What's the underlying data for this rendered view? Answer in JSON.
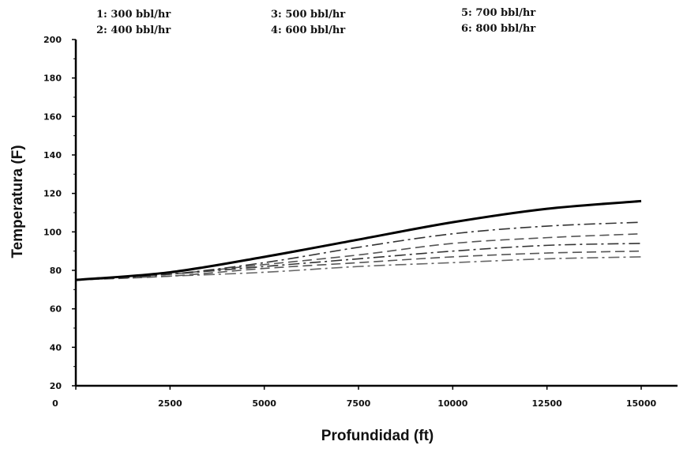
{
  "chart_data": {
    "type": "line",
    "title": "",
    "xlabel": "Profundidad (ft)",
    "ylabel": "Temperatura (F)",
    "xlim": [
      0,
      15000
    ],
    "ylim": [
      20,
      200
    ],
    "x_ticks": [
      "0",
      "2500",
      "5000",
      "7500",
      "10000",
      "12500",
      "15000"
    ],
    "y_ticks": [
      "20",
      "40",
      "60",
      "80",
      "100",
      "120",
      "140",
      "160",
      "180",
      "200"
    ],
    "grid": false,
    "legend_position": "top",
    "legend": [
      "1: 300 bbl/hr",
      "2: 400 bbl/hr",
      "3: 500 bbl/hr",
      "4: 600 bbl/hr",
      "5: 700 bbl/hr",
      "6: 800 bbl/hr"
    ],
    "x": [
      0,
      2500,
      5000,
      7500,
      10000,
      12500,
      15000
    ],
    "series": [
      {
        "values": [
          75,
          79,
          87,
          96,
          105,
          112,
          116
        ],
        "style": "solid",
        "color": "#000000"
      },
      {
        "values": [
          75,
          78,
          84,
          92,
          99,
          103,
          105
        ],
        "style": "dash-dot",
        "color": "#333333"
      },
      {
        "values": [
          75,
          78,
          83,
          88,
          94,
          97,
          99
        ],
        "style": "dash",
        "color": "#555555"
      },
      {
        "values": [
          75,
          78,
          82,
          86,
          90,
          93,
          94
        ],
        "style": "dash-dot",
        "color": "#333333"
      },
      {
        "values": [
          75,
          77,
          81,
          84,
          87,
          89,
          90
        ],
        "style": "dash",
        "color": "#555555"
      },
      {
        "values": [
          75,
          77,
          79,
          82,
          84,
          86,
          87
        ],
        "style": "dash-dot",
        "color": "#666666"
      }
    ]
  }
}
